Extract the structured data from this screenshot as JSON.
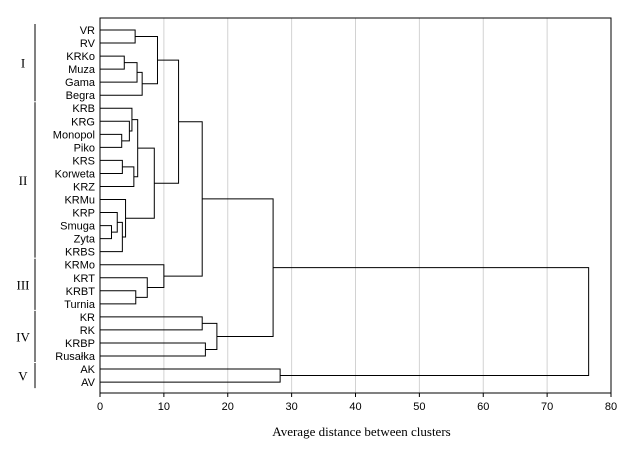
{
  "chart_data": {
    "type": "dendrogram",
    "xlabel": "Average distance between clusters",
    "xlim": [
      0,
      80
    ],
    "x_ticks": [
      0,
      10,
      20,
      30,
      40,
      50,
      60,
      70,
      80
    ],
    "grid": "vertical",
    "leaves": [
      "VR",
      "RV",
      "KRKo",
      "Muza",
      "Gama",
      "Begra",
      "KRB",
      "KRG",
      "Monopol",
      "Piko",
      "KRS",
      "Korweta",
      "KRZ",
      "KRMu",
      "KRP",
      "Smuga",
      "Zyta",
      "KRBS",
      "KRMo",
      "KRT",
      "KRBT",
      "Turnia",
      "KR",
      "RK",
      "KRBP",
      "Rusałka",
      "AK",
      "AV"
    ],
    "groups": [
      {
        "label": "I",
        "from": "VR",
        "to": "Begra"
      },
      {
        "label": "II",
        "from": "KRB",
        "to": "KRBS"
      },
      {
        "label": "III",
        "from": "KRMo",
        "to": "Turnia"
      },
      {
        "label": "IV",
        "from": "KR",
        "to": "Rusałka"
      },
      {
        "label": "V",
        "from": "AK",
        "to": "AV"
      }
    ],
    "merges": [
      {
        "id": "m1",
        "a": "VR",
        "b": "RV",
        "height": 5.5
      },
      {
        "id": "m2",
        "a": "KRKo",
        "b": "Muza",
        "height": 3.8
      },
      {
        "id": "m3",
        "a": "m2",
        "b": "Gama",
        "height": 5.8
      },
      {
        "id": "m4",
        "a": "m3",
        "b": "Begra",
        "height": 6.6
      },
      {
        "id": "m5",
        "a": "m1",
        "b": "m4",
        "height": 9.0
      },
      {
        "id": "m6",
        "a": "Monopol",
        "b": "Piko",
        "height": 3.4
      },
      {
        "id": "m7",
        "a": "KRG",
        "b": "m6",
        "height": 4.6
      },
      {
        "id": "m8",
        "a": "KRB",
        "b": "m7",
        "height": 5.0
      },
      {
        "id": "m9",
        "a": "KRS",
        "b": "Korweta",
        "height": 3.5
      },
      {
        "id": "m10",
        "a": "m9",
        "b": "KRZ",
        "height": 5.3
      },
      {
        "id": "m11",
        "a": "m8",
        "b": "m10",
        "height": 5.9
      },
      {
        "id": "m12",
        "a": "Smuga",
        "b": "Zyta",
        "height": 1.8
      },
      {
        "id": "m13",
        "a": "KRP",
        "b": "m12",
        "height": 2.7
      },
      {
        "id": "m14",
        "a": "m13",
        "b": "KRBS",
        "height": 3.5
      },
      {
        "id": "m15",
        "a": "KRMu",
        "b": "m14",
        "height": 4.0
      },
      {
        "id": "m16",
        "a": "m11",
        "b": "m15",
        "height": 8.5
      },
      {
        "id": "m17",
        "a": "m5",
        "b": "m16",
        "height": 12.3
      },
      {
        "id": "m18",
        "a": "KRBT",
        "b": "Turnia",
        "height": 5.6
      },
      {
        "id": "m19",
        "a": "KRT",
        "b": "m18",
        "height": 7.4
      },
      {
        "id": "m20",
        "a": "KRMo",
        "b": "m19",
        "height": 10.0
      },
      {
        "id": "m21",
        "a": "m17",
        "b": "m20",
        "height": 16.0
      },
      {
        "id": "m22",
        "a": "KR",
        "b": "RK",
        "height": 16.0
      },
      {
        "id": "m23",
        "a": "KRBP",
        "b": "Rusałka",
        "height": 16.5
      },
      {
        "id": "m24",
        "a": "m22",
        "b": "m23",
        "height": 18.3
      },
      {
        "id": "m25",
        "a": "m21",
        "b": "m24",
        "height": 27.1
      },
      {
        "id": "m26",
        "a": "AK",
        "b": "AV",
        "height": 28.2
      },
      {
        "id": "m27",
        "a": "m25",
        "b": "m26",
        "height": 76.5
      }
    ]
  }
}
